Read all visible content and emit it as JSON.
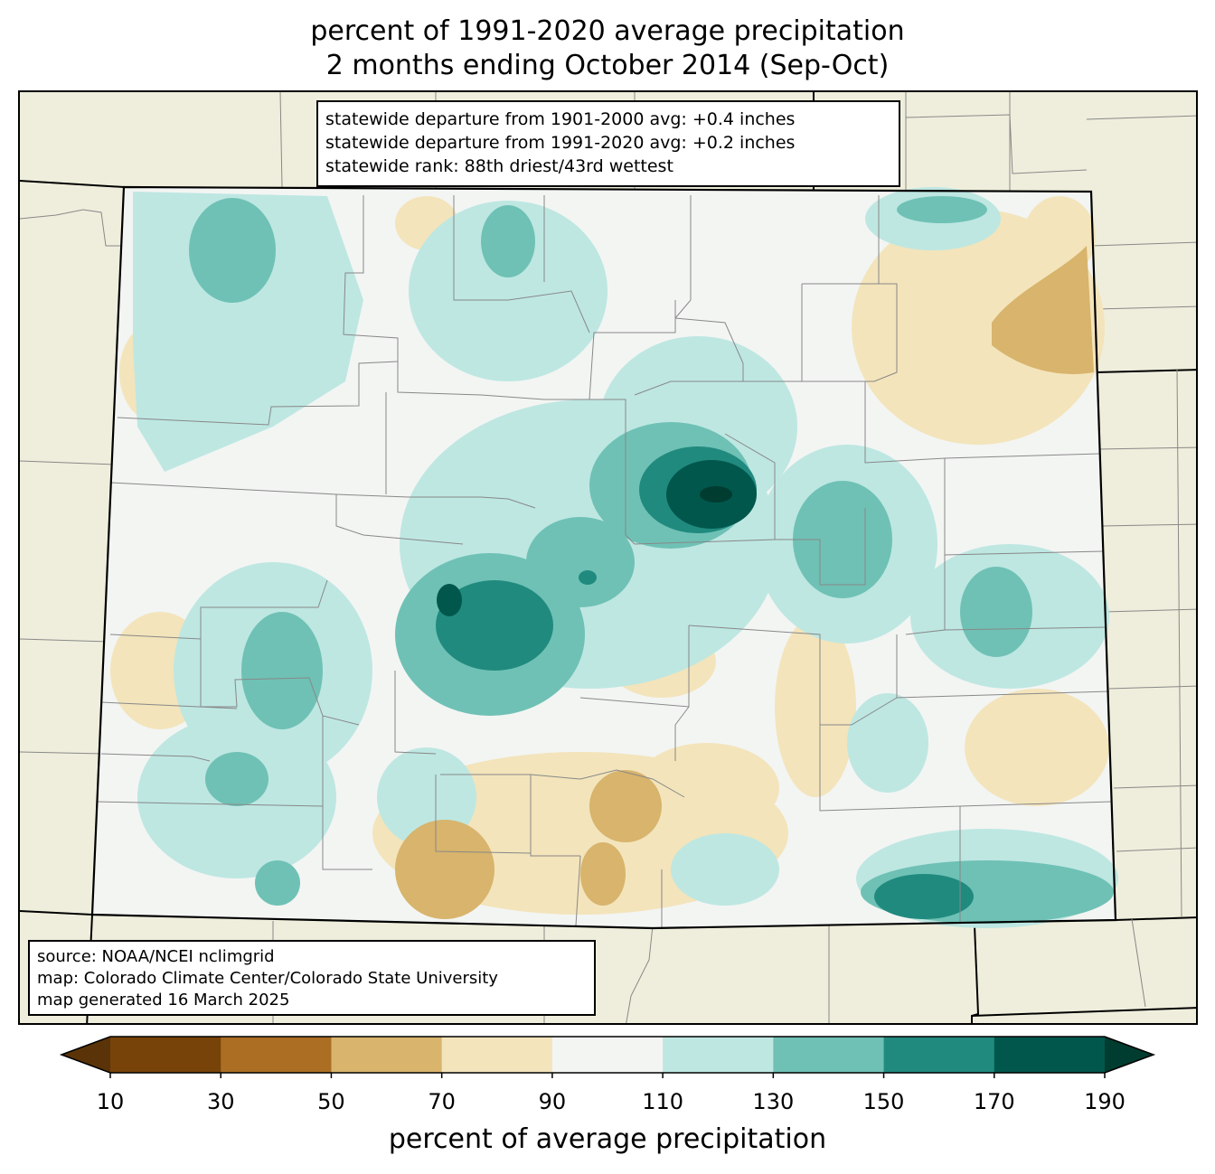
{
  "title": {
    "line1": "percent of 1991-2020 average precipitation",
    "line2": "2 months ending October 2014 (Sep-Oct)"
  },
  "stats_box": {
    "line1": "statewide departure from 1901-2000 avg: +0.4 inches",
    "line2": "statewide departure from 1991-2020 avg: +0.2 inches",
    "line3": "statewide rank: 88th driest/43rd wettest"
  },
  "credits_box": {
    "line1": "source: NOAA/NCEI nclimgrid",
    "line2": "map: Colorado Climate Center/Colorado State University",
    "line3": "map generated 16 March 2025"
  },
  "legend": {
    "label": "percent of average precipitation",
    "ticks": [
      "10",
      "30",
      "50",
      "70",
      "90",
      "110",
      "130",
      "150",
      "170",
      "190"
    ],
    "colors": [
      "#5a3408",
      "#784309",
      "#ab6e23",
      "#d8b46c",
      "#f3e4bb",
      "#f3f5f3",
      "#bee7e2",
      "#6fc1b5",
      "#218a7f",
      "#02574d",
      "#003c30"
    ]
  },
  "map_colors": {
    "background": "#efeedc",
    "state_fill": "#f3f5f3",
    "county_lines": "#888888",
    "state_lines": "#000000"
  }
}
